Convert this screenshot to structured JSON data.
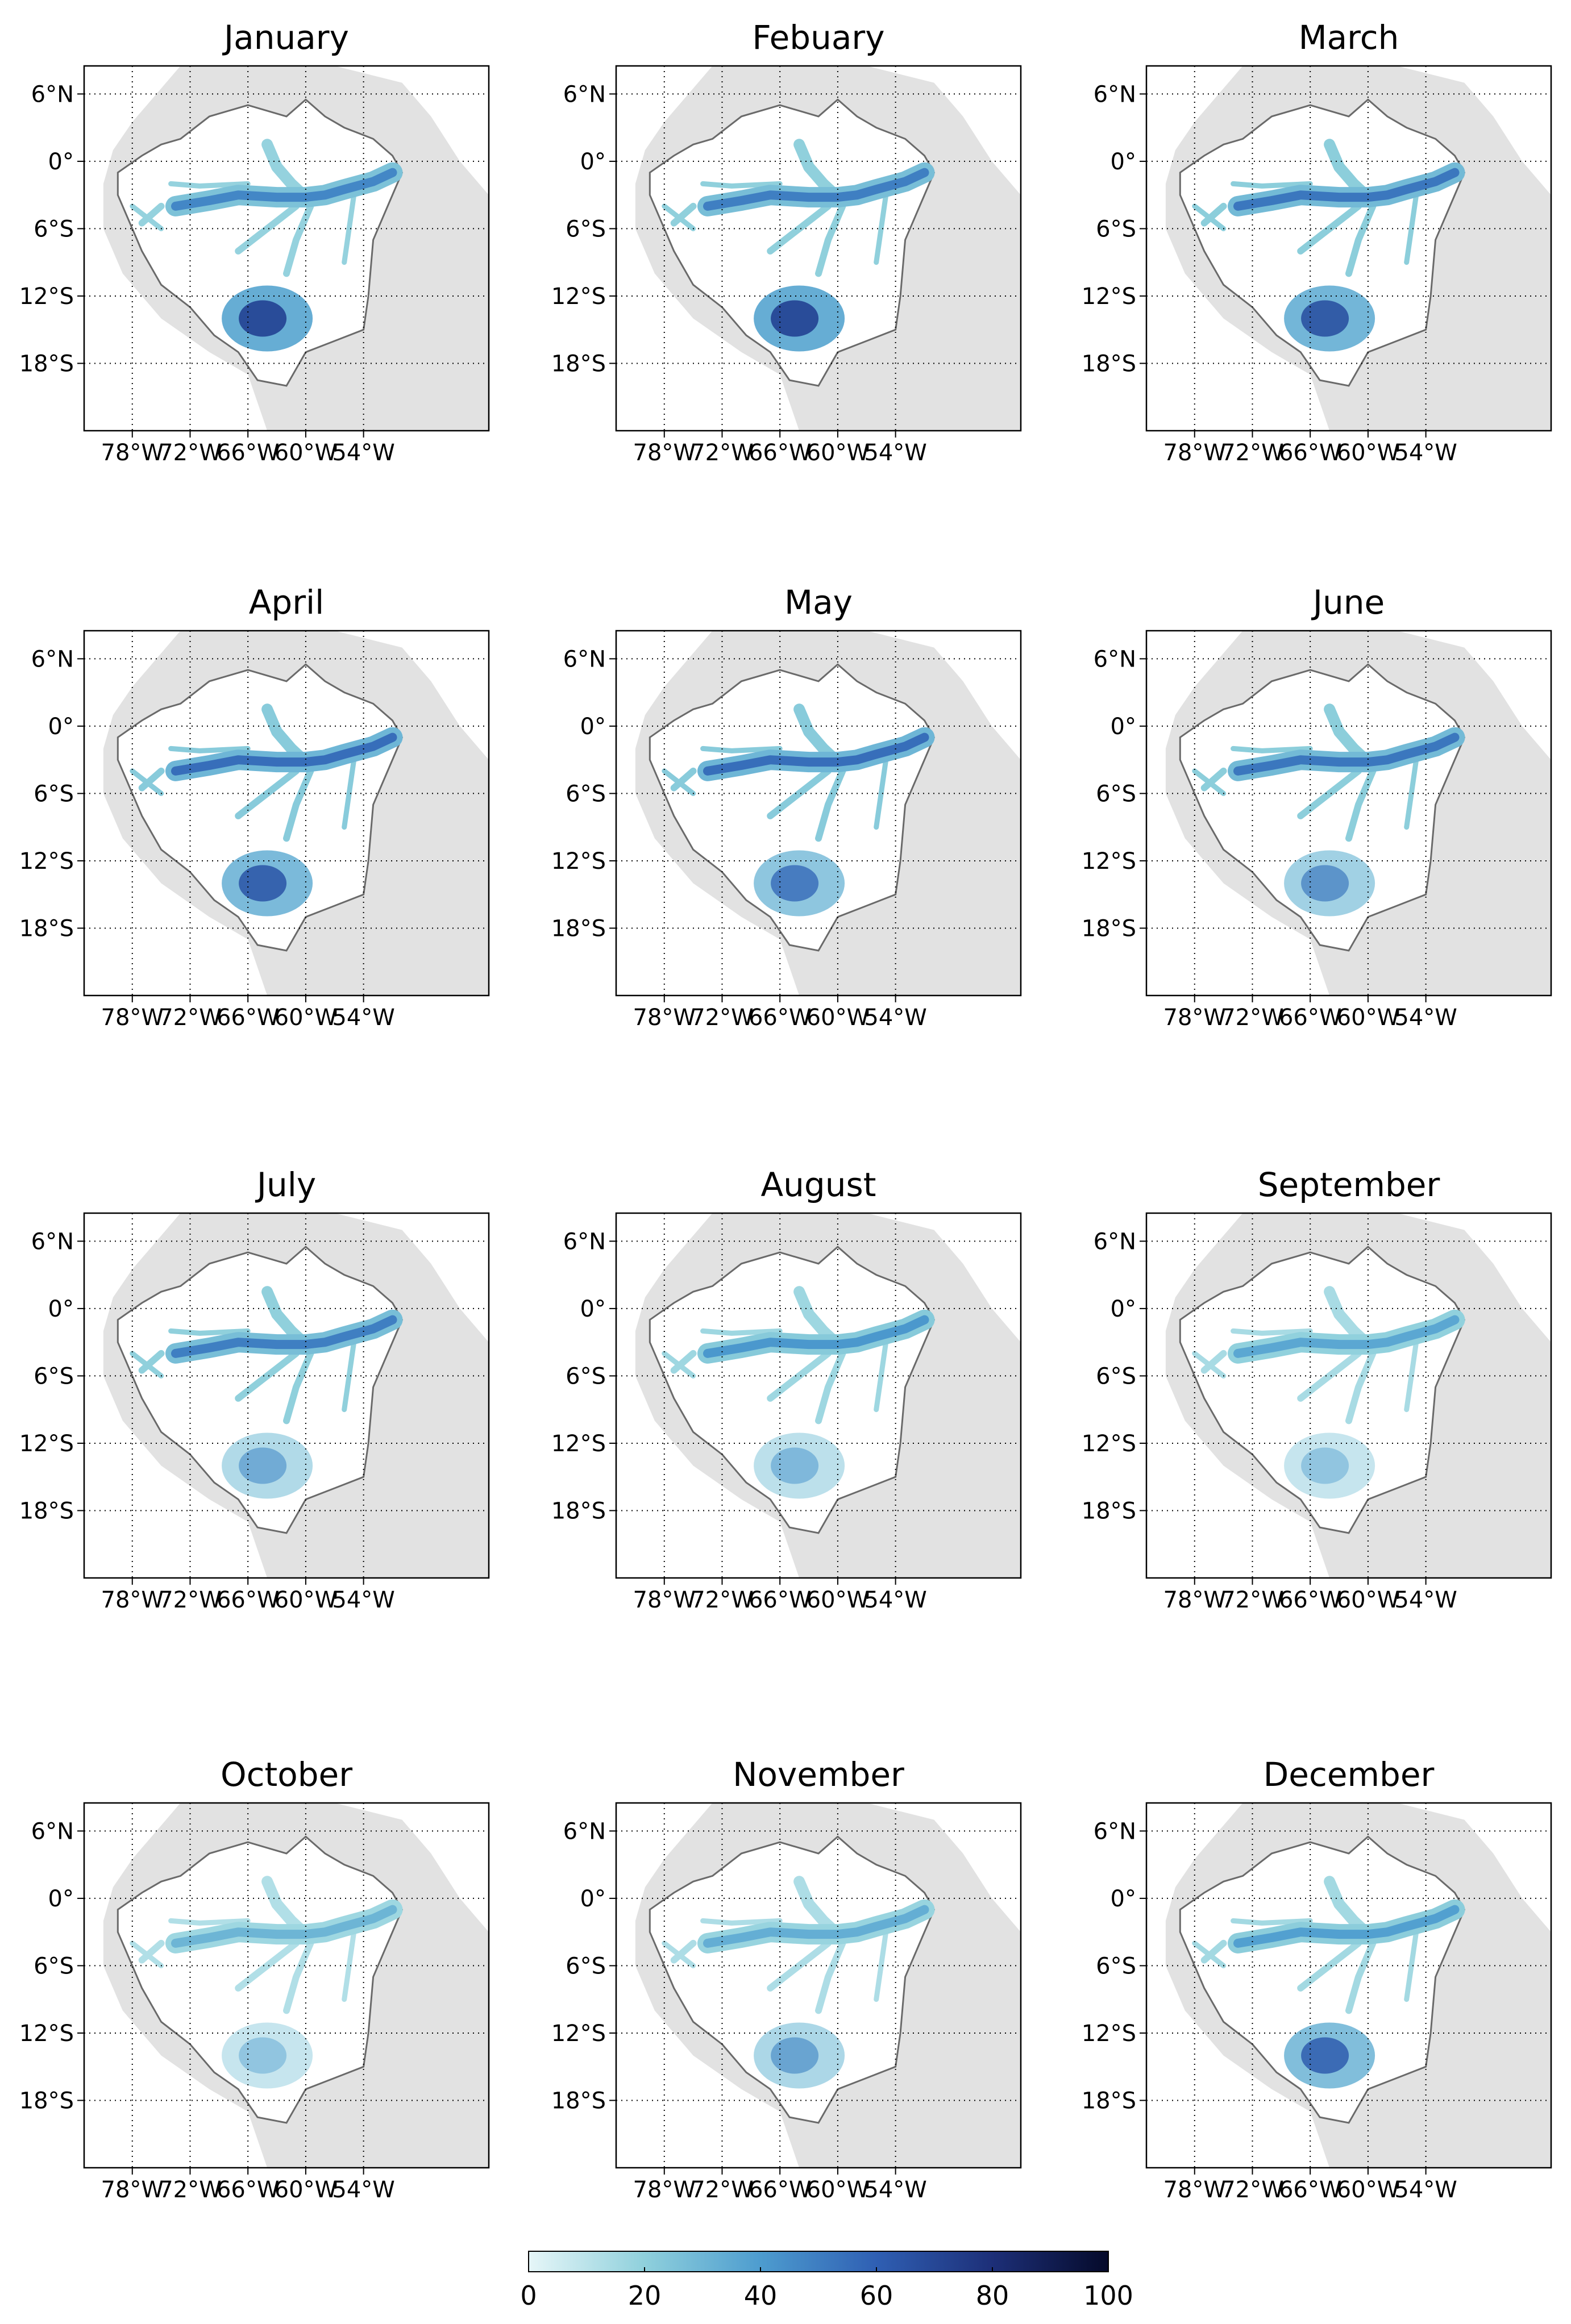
{
  "figure": {
    "panels": [
      {
        "month": "January",
        "intensity": 0.85,
        "south_intensity": 1.0
      },
      {
        "month": "Febuary",
        "intensity": 0.9,
        "south_intensity": 1.0
      },
      {
        "month": "March",
        "intensity": 0.95,
        "south_intensity": 0.9
      },
      {
        "month": "April",
        "intensity": 1.0,
        "south_intensity": 0.85
      },
      {
        "month": "May",
        "intensity": 1.0,
        "south_intensity": 0.7
      },
      {
        "month": "June",
        "intensity": 0.95,
        "south_intensity": 0.55
      },
      {
        "month": "July",
        "intensity": 0.9,
        "south_intensity": 0.4
      },
      {
        "month": "August",
        "intensity": 0.75,
        "south_intensity": 0.3
      },
      {
        "month": "September",
        "intensity": 0.65,
        "south_intensity": 0.2
      },
      {
        "month": "October",
        "intensity": 0.55,
        "south_intensity": 0.2
      },
      {
        "month": "November",
        "intensity": 0.6,
        "south_intensity": 0.45
      },
      {
        "month": "December",
        "intensity": 0.7,
        "south_intensity": 0.8
      }
    ],
    "lat_ticks": [
      "6°N",
      "0°",
      "6°S",
      "12°S",
      "18°S"
    ],
    "lon_ticks": [
      "78°W",
      "72°W",
      "66°W",
      "60°W",
      "54°W"
    ],
    "colorbar": {
      "ticks": [
        "0",
        "20",
        "40",
        "60",
        "80",
        "100"
      ],
      "range": [
        0,
        100
      ],
      "colors": [
        "#e6f6f8",
        "#8fd0dc",
        "#4d9ccf",
        "#2f5fb3",
        "#1d2f78",
        "#050a2a"
      ]
    },
    "colors": {
      "land": "#e2e2e2",
      "basin_fill": "#ffffff",
      "basin_outline": "#6a6a6a"
    }
  }
}
